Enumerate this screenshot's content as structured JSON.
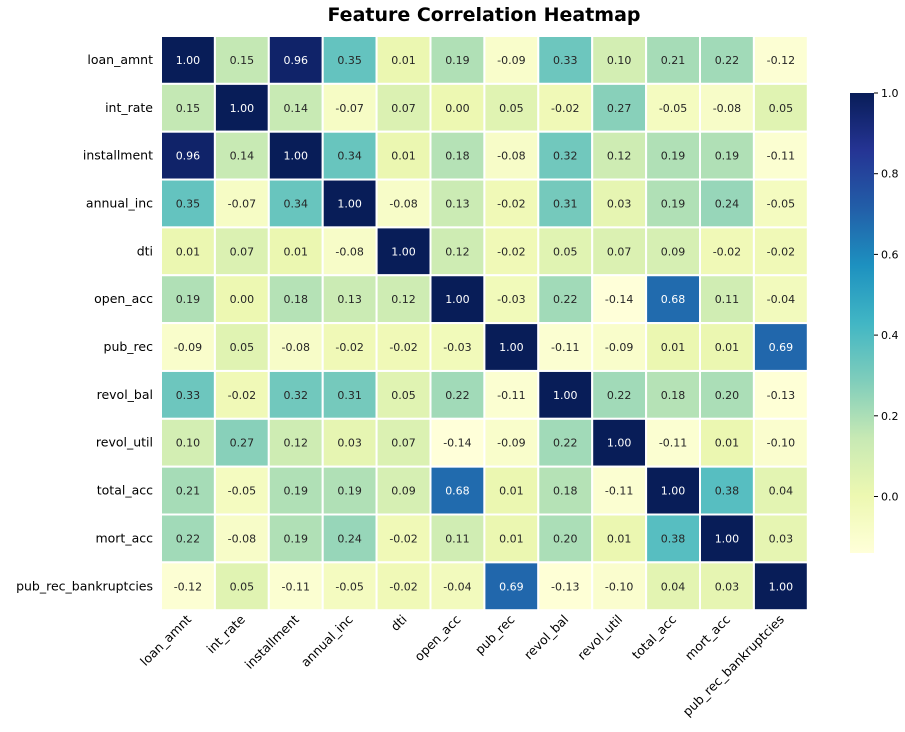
{
  "chart_data": {
    "type": "heatmap",
    "title": "Feature Correlation Heatmap",
    "rows": [
      "loan_amnt",
      "int_rate",
      "installment",
      "annual_inc",
      "dti",
      "open_acc",
      "pub_rec",
      "revol_bal",
      "revol_util",
      "total_acc",
      "mort_acc",
      "pub_rec_bankruptcies"
    ],
    "columns": [
      "loan_amnt",
      "int_rate",
      "installment",
      "annual_inc",
      "dti",
      "open_acc",
      "pub_rec",
      "revol_bal",
      "revol_util",
      "total_acc",
      "mort_acc",
      "pub_rec_bankruptcies"
    ],
    "values": [
      [
        1.0,
        0.15,
        0.96,
        0.35,
        0.01,
        0.19,
        -0.09,
        0.33,
        0.1,
        0.21,
        0.22,
        -0.12
      ],
      [
        0.15,
        1.0,
        0.14,
        -0.07,
        0.07,
        -0.0,
        0.05,
        -0.02,
        0.27,
        -0.05,
        -0.08,
        0.05
      ],
      [
        0.96,
        0.14,
        1.0,
        0.34,
        0.01,
        0.18,
        -0.08,
        0.32,
        0.12,
        0.19,
        0.19,
        -0.11
      ],
      [
        0.35,
        -0.07,
        0.34,
        1.0,
        -0.08,
        0.13,
        -0.02,
        0.31,
        0.03,
        0.19,
        0.24,
        -0.05
      ],
      [
        0.01,
        0.07,
        0.01,
        -0.08,
        1.0,
        0.12,
        -0.02,
        0.05,
        0.07,
        0.09,
        -0.02,
        -0.02
      ],
      [
        0.19,
        -0.0,
        0.18,
        0.13,
        0.12,
        1.0,
        -0.03,
        0.22,
        -0.14,
        0.68,
        0.11,
        -0.04
      ],
      [
        -0.09,
        0.05,
        -0.08,
        -0.02,
        -0.02,
        -0.03,
        1.0,
        -0.11,
        -0.09,
        0.01,
        0.01,
        0.69
      ],
      [
        0.33,
        -0.02,
        0.32,
        0.31,
        0.05,
        0.22,
        -0.11,
        1.0,
        0.22,
        0.18,
        0.2,
        -0.13
      ],
      [
        0.1,
        0.27,
        0.12,
        0.03,
        0.07,
        -0.14,
        -0.09,
        0.22,
        1.0,
        -0.11,
        0.01,
        -0.1
      ],
      [
        0.21,
        -0.05,
        0.19,
        0.19,
        0.09,
        0.68,
        0.01,
        0.18,
        -0.11,
        1.0,
        0.38,
        0.04
      ],
      [
        0.22,
        -0.08,
        0.19,
        0.24,
        -0.02,
        0.11,
        0.01,
        0.2,
        0.01,
        0.38,
        1.0,
        0.03
      ],
      [
        -0.12,
        0.05,
        -0.11,
        -0.05,
        -0.02,
        -0.04,
        0.69,
        -0.13,
        -0.1,
        0.04,
        0.03,
        1.0
      ]
    ],
    "colormap": "YlGnBu",
    "vmin": -0.14,
    "vmax": 1.0,
    "colorbar_ticks": [
      "0.0",
      "0.2",
      "0.4",
      "0.6",
      "0.8",
      "1.0"
    ],
    "colorbar_tick_values": [
      0.0,
      0.2,
      0.4,
      0.6,
      0.8,
      1.0
    ],
    "annotations": "values shown in each cell, 2 decimals",
    "grid": false,
    "legend": "colorbar right"
  }
}
